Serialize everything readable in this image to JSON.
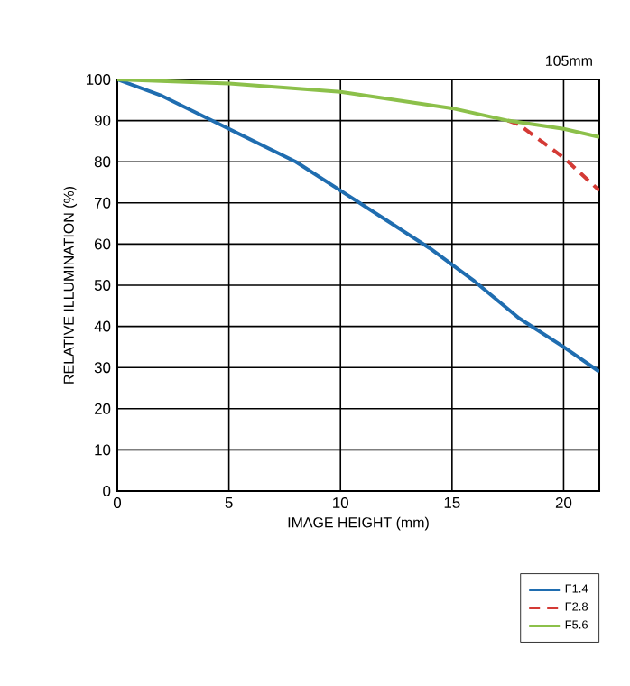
{
  "chart_data": {
    "type": "line",
    "title": "105mm",
    "xlabel": "IMAGE HEIGHT (mm)",
    "ylabel": "RELATIVE ILLUMINATION (%)",
    "xlim": [
      0,
      21.6
    ],
    "ylim": [
      0,
      100
    ],
    "xticks": [
      0,
      5,
      10,
      15,
      20
    ],
    "yticks": [
      0,
      10,
      20,
      30,
      40,
      50,
      60,
      70,
      80,
      90,
      100
    ],
    "grid": true,
    "legend": "bottom right",
    "marker": "none",
    "series": [
      {
        "name": "F1.4",
        "color": "#1f6db0",
        "line_style": "solid",
        "x": [
          0,
          2,
          5,
          8,
          10,
          12,
          14,
          16,
          18,
          20,
          21.6
        ],
        "values": [
          100,
          96,
          88,
          80,
          73,
          66,
          59,
          51,
          42,
          35,
          29
        ]
      },
      {
        "name": "F2.8",
        "color": "#d43a35",
        "line_style": "dashed",
        "x": [
          17.5,
          18,
          19,
          20,
          21.6
        ],
        "values": [
          90,
          89,
          85,
          81,
          73
        ]
      },
      {
        "name": "F5.6",
        "color": "#8cc04a",
        "line_style": "solid",
        "x": [
          0,
          5,
          10,
          15,
          17.5,
          20,
          21.6
        ],
        "values": [
          100,
          99,
          97,
          93,
          90,
          88,
          86
        ]
      }
    ]
  }
}
